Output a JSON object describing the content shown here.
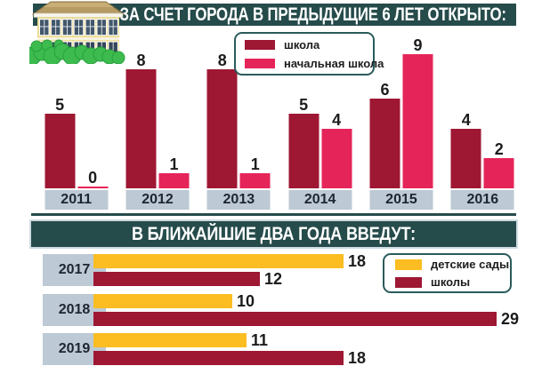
{
  "header_top": {
    "title": "ЗА СЧЕТ ГОРОДА В ПРЕДЫДУЩИЕ 6 ЛЕТ ОТКРЫТО:"
  },
  "header_bottom": {
    "title": "В БЛИЖАЙШИЕ ДВА ГОДА ВВЕДУТ:"
  },
  "icons": {
    "building": "school-building-illustration"
  },
  "colors": {
    "teal": "#264b4b",
    "dark_red": "#9e1733",
    "pink": "#e52459",
    "yellow": "#fcbd22",
    "year_box": "#bdc9d4",
    "band_border": "#cfdbe2"
  },
  "chart_data": [
    {
      "type": "bar",
      "orientation": "vertical",
      "title": "ЗА СЧЕТ ГОРОДА В ПРЕДЫДУЩИЕ 6 ЛЕТ ОТКРЫТО:",
      "categories": [
        "2011",
        "2012",
        "2013",
        "2014",
        "2015",
        "2016"
      ],
      "series": [
        {
          "name": "школа",
          "color": "#9e1733",
          "values": [
            5,
            8,
            8,
            5,
            6,
            4
          ]
        },
        {
          "name": "начальная школа",
          "color": "#e52459",
          "values": [
            0,
            1,
            1,
            4,
            9,
            2
          ]
        }
      ],
      "ylim": [
        0,
        9
      ],
      "grid": false,
      "data_labels": true,
      "legend_position": "top-center"
    },
    {
      "type": "bar",
      "orientation": "horizontal",
      "title": "В БЛИЖАЙШИЕ ДВА ГОДА ВВЕДУТ:",
      "categories": [
        "2017",
        "2018",
        "2019"
      ],
      "series": [
        {
          "name": "детские сады",
          "color": "#fcbd22",
          "values": [
            18,
            10,
            11
          ]
        },
        {
          "name": "школы",
          "color": "#9e1733",
          "values": [
            12,
            29,
            18
          ]
        }
      ],
      "xlim": [
        0,
        29
      ],
      "grid": false,
      "data_labels": true,
      "legend_position": "right-top"
    }
  ]
}
